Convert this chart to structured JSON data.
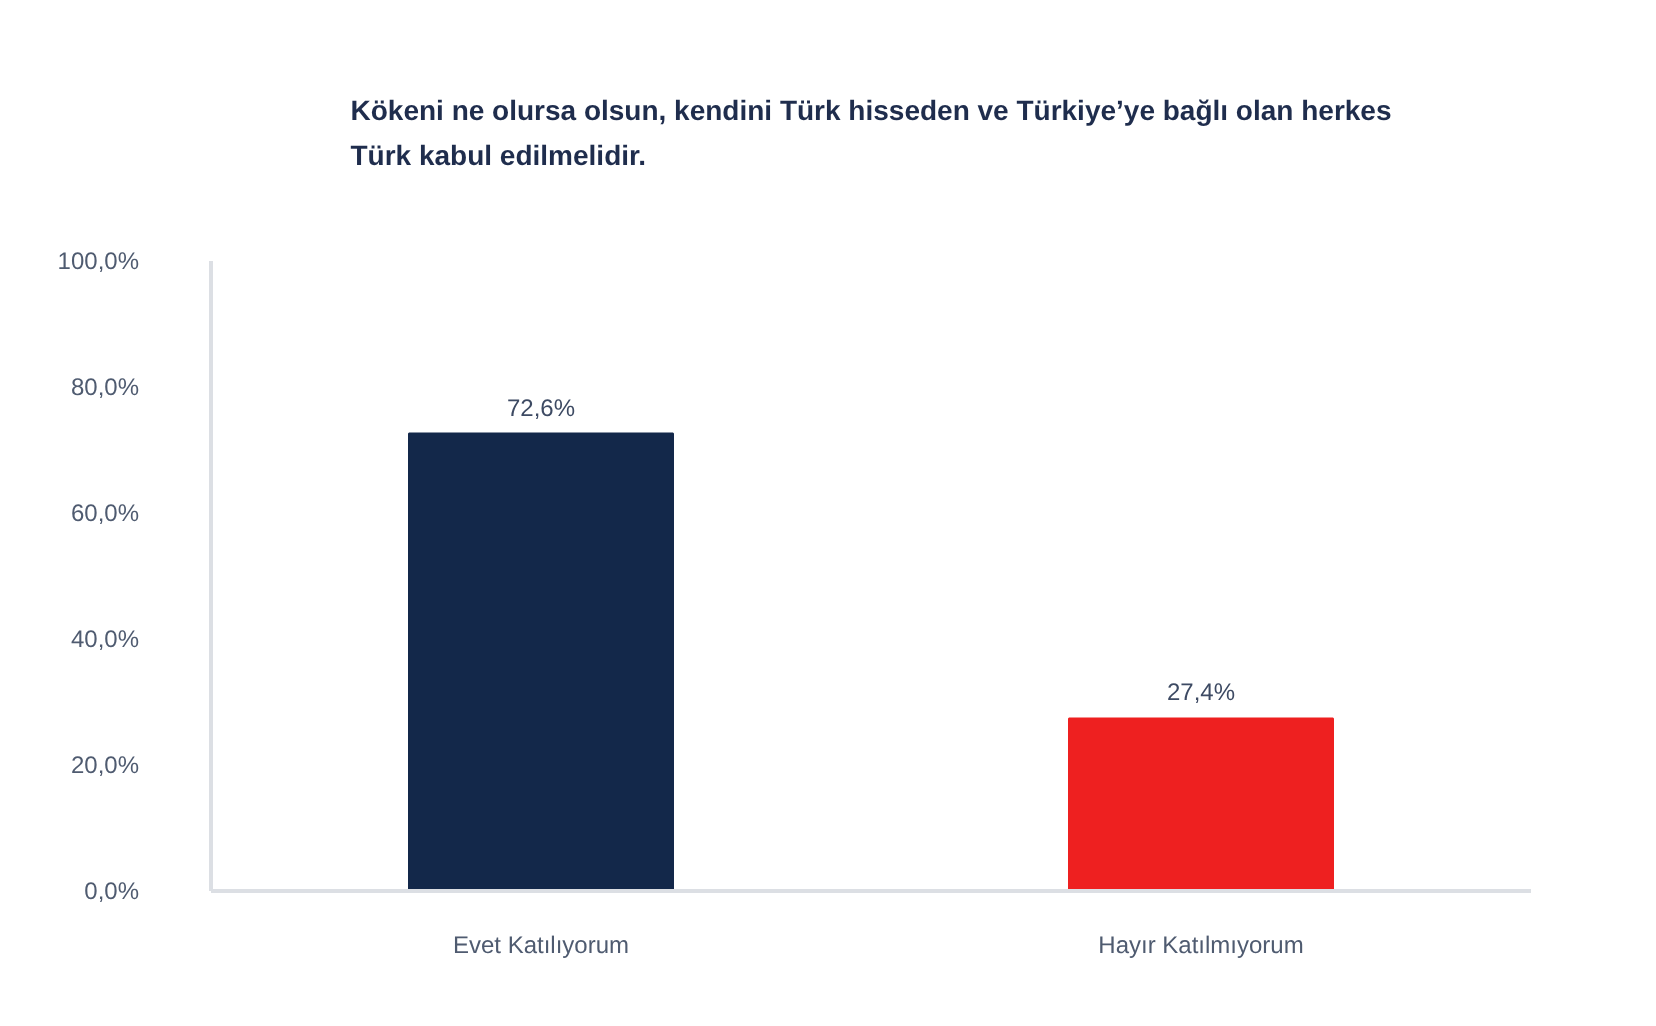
{
  "chart_data": {
    "type": "bar",
    "title": "Kökeni ne olursa olsun, kendini Türk hisseden ve Türkiye’ye bağlı olan herkes Türk kabul edilmelidir.",
    "categories": [
      "Evet Katılıyorum",
      "Hayır Katılmıyorum"
    ],
    "values": [
      72.6,
      27.4
    ],
    "colors": [
      "#13284a",
      "#ee2020"
    ],
    "value_labels": [
      "72,6%",
      "27,4%"
    ],
    "ylim": [
      0,
      100
    ],
    "yticks": [
      {
        "value": 0,
        "label": "0,0%"
      },
      {
        "value": 20,
        "label": "20,0%"
      },
      {
        "value": 40,
        "label": "40,0%"
      },
      {
        "value": 60,
        "label": "60,0%"
      },
      {
        "value": 80,
        "label": "80,0%"
      },
      {
        "value": 100,
        "label": "100,0%"
      }
    ]
  }
}
